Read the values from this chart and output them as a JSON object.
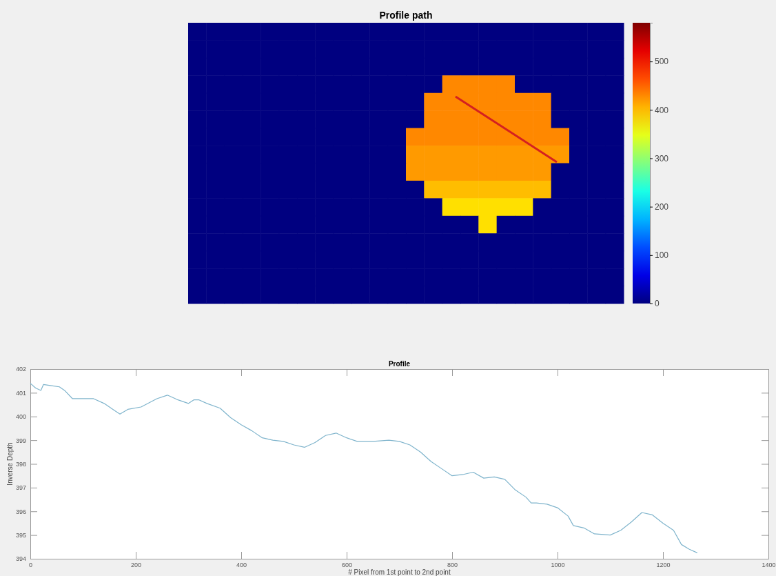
{
  "chart_data": [
    {
      "type": "heatmap",
      "title": "Profile path",
      "clim": [
        0,
        580
      ],
      "cticks": [
        0,
        100,
        200,
        300,
        400,
        500
      ],
      "categories": [
        null,
        null,
        null,
        null,
        null,
        null,
        null,
        null,
        null,
        null,
        null,
        null,
        null,
        null,
        null,
        null,
        null,
        null,
        null,
        null,
        null,
        null,
        null,
        null
      ],
      "y_categories": [
        null,
        null,
        null,
        null,
        null,
        null,
        null,
        null,
        null,
        null,
        null,
        null,
        null,
        null,
        null,
        null
      ],
      "cells": [
        [
          0,
          0,
          0,
          0,
          0,
          0,
          0,
          0,
          0,
          0,
          0,
          0,
          0,
          0,
          0,
          0,
          0,
          0,
          0,
          0,
          0,
          0,
          0,
          0
        ],
        [
          0,
          0,
          0,
          0,
          0,
          0,
          0,
          0,
          0,
          0,
          0,
          0,
          0,
          0,
          0,
          0,
          0,
          0,
          0,
          0,
          0,
          0,
          0,
          0
        ],
        [
          0,
          0,
          0,
          0,
          0,
          0,
          0,
          0,
          0,
          0,
          0,
          0,
          0,
          0,
          0,
          0,
          0,
          0,
          0,
          0,
          0,
          0,
          0,
          0
        ],
        [
          0,
          0,
          0,
          0,
          0,
          0,
          0,
          0,
          0,
          0,
          0,
          0,
          0,
          0,
          430,
          430,
          430,
          430,
          0,
          0,
          0,
          0,
          0,
          0
        ],
        [
          0,
          0,
          0,
          0,
          0,
          0,
          0,
          0,
          0,
          0,
          0,
          0,
          0,
          430,
          430,
          430,
          430,
          430,
          430,
          430,
          0,
          0,
          0,
          0
        ],
        [
          0,
          0,
          0,
          0,
          0,
          0,
          0,
          0,
          0,
          0,
          0,
          0,
          0,
          430,
          430,
          430,
          430,
          430,
          430,
          430,
          0,
          0,
          0,
          0
        ],
        [
          0,
          0,
          0,
          0,
          0,
          0,
          0,
          0,
          0,
          0,
          0,
          0,
          430,
          430,
          430,
          430,
          430,
          430,
          430,
          430,
          430,
          0,
          0,
          0
        ],
        [
          0,
          0,
          0,
          0,
          0,
          0,
          0,
          0,
          0,
          0,
          0,
          0,
          420,
          420,
          420,
          420,
          420,
          420,
          420,
          420,
          420,
          0,
          0,
          0
        ],
        [
          0,
          0,
          0,
          0,
          0,
          0,
          0,
          0,
          0,
          0,
          0,
          0,
          420,
          420,
          420,
          420,
          420,
          420,
          420,
          420,
          0,
          0,
          0,
          0
        ],
        [
          0,
          0,
          0,
          0,
          0,
          0,
          0,
          0,
          0,
          0,
          0,
          0,
          0,
          400,
          400,
          400,
          400,
          400,
          400,
          400,
          0,
          0,
          0,
          0
        ],
        [
          0,
          0,
          0,
          0,
          0,
          0,
          0,
          0,
          0,
          0,
          0,
          0,
          0,
          0,
          380,
          380,
          380,
          380,
          380,
          0,
          0,
          0,
          0,
          0
        ],
        [
          0,
          0,
          0,
          0,
          0,
          0,
          0,
          0,
          0,
          0,
          0,
          0,
          0,
          0,
          0,
          0,
          380,
          0,
          0,
          0,
          0,
          0,
          0,
          0
        ],
        [
          0,
          0,
          0,
          0,
          0,
          0,
          0,
          0,
          0,
          0,
          0,
          0,
          0,
          0,
          0,
          0,
          0,
          0,
          0,
          0,
          0,
          0,
          0,
          0
        ],
        [
          0,
          0,
          0,
          0,
          0,
          0,
          0,
          0,
          0,
          0,
          0,
          0,
          0,
          0,
          0,
          0,
          0,
          0,
          0,
          0,
          0,
          0,
          0,
          0
        ],
        [
          0,
          0,
          0,
          0,
          0,
          0,
          0,
          0,
          0,
          0,
          0,
          0,
          0,
          0,
          0,
          0,
          0,
          0,
          0,
          0,
          0,
          0,
          0,
          0
        ],
        [
          0,
          0,
          0,
          0,
          0,
          0,
          0,
          0,
          0,
          0,
          0,
          0,
          0,
          0,
          0,
          0,
          0,
          0,
          0,
          0,
          0,
          0,
          0,
          0
        ]
      ]
    },
    {
      "type": "line",
      "title": "Profile",
      "xlabel": "# Pixel from 1st point to 2nd point",
      "ylabel": "Inverse Depth",
      "xlim": [
        0,
        1400
      ],
      "ylim": [
        394,
        402
      ],
      "xticks": [
        0,
        200,
        400,
        600,
        800,
        1000,
        1200,
        1400
      ],
      "yticks": [
        394,
        395,
        396,
        397,
        398,
        399,
        400,
        401,
        402
      ],
      "x": [
        0,
        10,
        20,
        25,
        40,
        55,
        65,
        80,
        120,
        140,
        160,
        170,
        185,
        210,
        240,
        260,
        280,
        300,
        310,
        320,
        335,
        360,
        380,
        400,
        420,
        440,
        460,
        480,
        500,
        520,
        540,
        560,
        580,
        600,
        620,
        650,
        680,
        700,
        720,
        740,
        760,
        780,
        800,
        820,
        840,
        860,
        880,
        900,
        920,
        940,
        950,
        960,
        980,
        1000,
        1020,
        1030,
        1050,
        1070,
        1100,
        1120,
        1140,
        1160,
        1180,
        1200,
        1220,
        1235,
        1250,
        1265
      ],
      "series": [
        {
          "color": "#7fb4cc",
          "values": [
            401.4,
            401.2,
            401.1,
            401.35,
            401.3,
            401.25,
            401.1,
            400.75,
            400.75,
            400.55,
            400.25,
            400.1,
            400.3,
            400.4,
            400.75,
            400.9,
            400.7,
            400.55,
            400.7,
            400.7,
            400.55,
            400.35,
            399.95,
            399.65,
            399.4,
            399.1,
            399.0,
            398.95,
            398.8,
            398.7,
            398.9,
            399.2,
            399.3,
            399.1,
            398.95,
            398.95,
            399.0,
            398.95,
            398.8,
            398.5,
            398.1,
            397.8,
            397.5,
            397.55,
            397.65,
            397.4,
            397.45,
            397.35,
            396.9,
            396.6,
            396.35,
            396.35,
            396.3,
            396.15,
            395.8,
            395.4,
            395.3,
            395.05,
            395.0,
            395.2,
            395.55,
            395.95,
            395.85,
            395.5,
            395.2,
            394.6,
            394.4,
            394.25
          ]
        }
      ]
    }
  ]
}
